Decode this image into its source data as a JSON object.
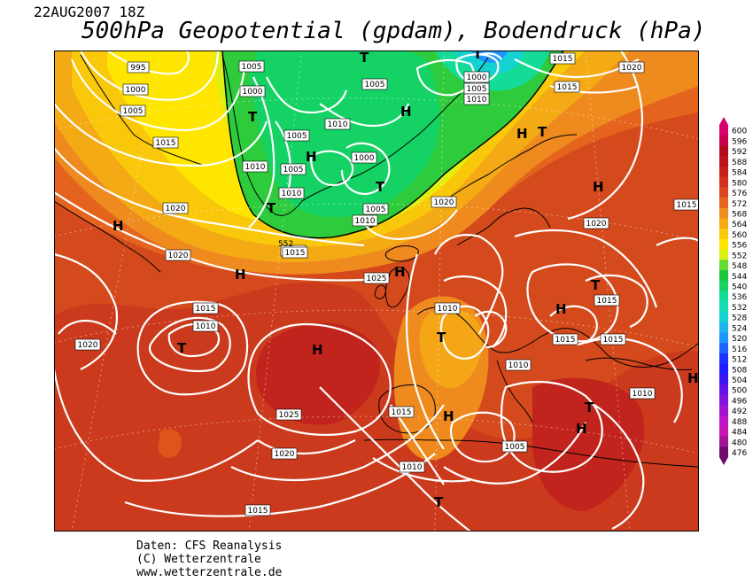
{
  "header": {
    "datetime": "22AUG2007 18Z",
    "title": "500hPa Geopotential (gpdam), Bodendruck (hPa)"
  },
  "map": {
    "region": "North Atlantic and Europe",
    "isobar_color": "#ffffff",
    "pressure_labels": [
      {
        "id": "p1",
        "text": "995"
      },
      {
        "id": "p2",
        "text": "1000"
      },
      {
        "id": "p3",
        "text": "1005"
      },
      {
        "id": "p4",
        "text": "1015"
      },
      {
        "id": "p5",
        "text": "1020"
      },
      {
        "id": "p6",
        "text": "1020"
      },
      {
        "id": "p7",
        "text": "1005"
      },
      {
        "id": "p8",
        "text": "1000"
      },
      {
        "id": "p9",
        "text": "1005"
      },
      {
        "id": "p10",
        "text": "1010"
      },
      {
        "id": "p11",
        "text": "1005"
      },
      {
        "id": "p12",
        "text": "1000"
      },
      {
        "id": "p13",
        "text": "1005"
      },
      {
        "id": "p14",
        "text": "1010"
      },
      {
        "id": "p15",
        "text": "1010"
      },
      {
        "id": "p16",
        "text": "1005"
      },
      {
        "id": "p17",
        "text": "1010"
      },
      {
        "id": "p18",
        "text": "1015"
      },
      {
        "id": "p19",
        "text": "1000"
      },
      {
        "id": "p20",
        "text": "1005"
      },
      {
        "id": "p21",
        "text": "1010"
      },
      {
        "id": "p22",
        "text": "1015"
      },
      {
        "id": "p23",
        "text": "1015"
      },
      {
        "id": "p24",
        "text": "1020"
      },
      {
        "id": "p25",
        "text": "1020"
      },
      {
        "id": "p26",
        "text": "1015"
      },
      {
        "id": "p27",
        "text": "1025"
      },
      {
        "id": "p28",
        "text": "1015"
      },
      {
        "id": "p29",
        "text": "1010"
      },
      {
        "id": "p30",
        "text": "1020"
      },
      {
        "id": "p31",
        "text": "1025"
      },
      {
        "id": "p32",
        "text": "1020"
      },
      {
        "id": "p33",
        "text": "1015"
      },
      {
        "id": "p34",
        "text": "1010"
      },
      {
        "id": "p35",
        "text": "1015"
      },
      {
        "id": "p36",
        "text": "1010"
      },
      {
        "id": "p37",
        "text": "1005"
      },
      {
        "id": "p38",
        "text": "1010"
      },
      {
        "id": "p39",
        "text": "1015"
      },
      {
        "id": "p40",
        "text": "1015"
      },
      {
        "id": "p41",
        "text": "1010"
      },
      {
        "id": "p42",
        "text": "1015"
      },
      {
        "id": "p43",
        "text": "1015"
      },
      {
        "id": "p44",
        "text": "1020"
      },
      {
        "id": "p45",
        "text": "1015"
      },
      {
        "id": "p46",
        "text": "552"
      }
    ],
    "pressure_centers": [
      {
        "id": "c1",
        "type": "T"
      },
      {
        "id": "c2",
        "type": "T"
      },
      {
        "id": "c3",
        "type": "T"
      },
      {
        "id": "c4",
        "type": "T"
      },
      {
        "id": "c5",
        "type": "T"
      },
      {
        "id": "c6",
        "type": "T"
      },
      {
        "id": "c7",
        "type": "T"
      },
      {
        "id": "c8",
        "type": "T"
      },
      {
        "id": "c9",
        "type": "T"
      },
      {
        "id": "c10",
        "type": "T"
      },
      {
        "id": "c11",
        "type": "T"
      },
      {
        "id": "c12",
        "type": "H"
      },
      {
        "id": "c13",
        "type": "H"
      },
      {
        "id": "c14",
        "type": "H"
      },
      {
        "id": "c15",
        "type": "H"
      },
      {
        "id": "c16",
        "type": "H"
      },
      {
        "id": "c17",
        "type": "H"
      },
      {
        "id": "c18",
        "type": "H"
      },
      {
        "id": "c19",
        "type": "H"
      },
      {
        "id": "c20",
        "type": "H"
      },
      {
        "id": "c21",
        "type": "H"
      },
      {
        "id": "c22",
        "type": "H"
      },
      {
        "id": "c23",
        "type": "H"
      }
    ]
  },
  "legend": {
    "unit": "gpdam",
    "levels": [
      {
        "label": "600",
        "color": "#d6006e"
      },
      {
        "label": "596",
        "color": "#c8004a"
      },
      {
        "label": "592",
        "color": "#b40a1e"
      },
      {
        "label": "588",
        "color": "#be141e"
      },
      {
        "label": "584",
        "color": "#c81e1e"
      },
      {
        "label": "580",
        "color": "#d2321e"
      },
      {
        "label": "576",
        "color": "#dc461e"
      },
      {
        "label": "572",
        "color": "#e6641e"
      },
      {
        "label": "568",
        "color": "#f08c1e"
      },
      {
        "label": "564",
        "color": "#f5aa14"
      },
      {
        "label": "560",
        "color": "#fac80a"
      },
      {
        "label": "556",
        "color": "#ffe600"
      },
      {
        "label": "552",
        "color": "#dcf014"
      },
      {
        "label": "548",
        "color": "#64dc32"
      },
      {
        "label": "544",
        "color": "#1ec83c"
      },
      {
        "label": "540",
        "color": "#14d264"
      },
      {
        "label": "536",
        "color": "#14dc96"
      },
      {
        "label": "532",
        "color": "#14dcb4"
      },
      {
        "label": "528",
        "color": "#14d2d2"
      },
      {
        "label": "524",
        "color": "#1eb4f0"
      },
      {
        "label": "520",
        "color": "#1e96ff"
      },
      {
        "label": "516",
        "color": "#1e64ff"
      },
      {
        "label": "512",
        "color": "#1e32ff"
      },
      {
        "label": "508",
        "color": "#1e1eff"
      },
      {
        "label": "504",
        "color": "#3c14f0"
      },
      {
        "label": "500",
        "color": "#6414e6"
      },
      {
        "label": "496",
        "color": "#8214dc"
      },
      {
        "label": "492",
        "color": "#a014d2"
      },
      {
        "label": "488",
        "color": "#be14c8"
      },
      {
        "label": "484",
        "color": "#c814b4"
      },
      {
        "label": "480",
        "color": "#a01496"
      },
      {
        "label": "476",
        "color": "#6e0a6e"
      }
    ]
  },
  "footer": {
    "source": "Daten: CFS Reanalysis",
    "copyright": "(C) Wetterzentrale",
    "url": "www.wetterzentrale.de"
  }
}
